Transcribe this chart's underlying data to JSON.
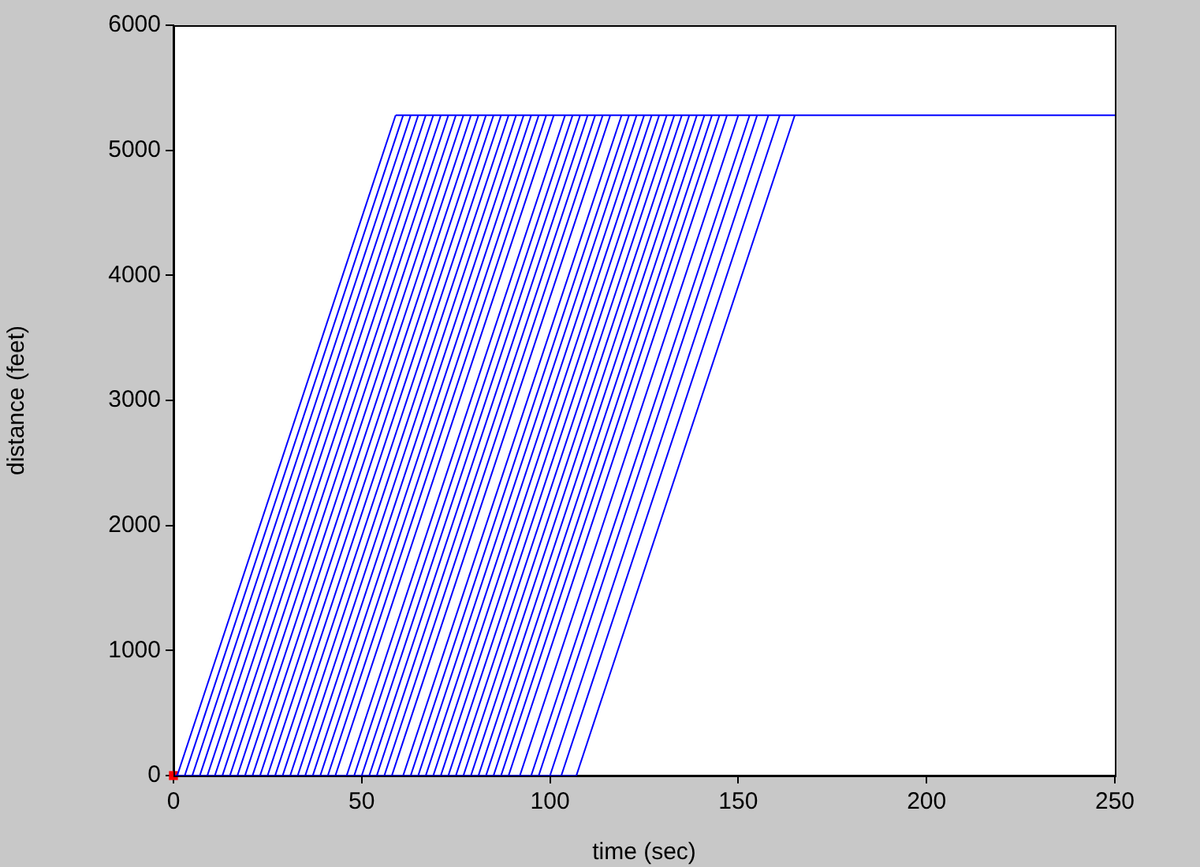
{
  "chart_data": {
    "type": "line",
    "xlabel": "time (sec)",
    "ylabel": "distance (feet)",
    "xlim": [
      0,
      250
    ],
    "xticks": [
      0,
      50,
      100,
      150,
      200,
      250
    ],
    "ylim": [
      0,
      6000
    ],
    "yticks": [
      0,
      1000,
      2000,
      3000,
      4000,
      5000,
      6000
    ],
    "grid": false,
    "legend": false,
    "marker": "none",
    "line_style": "solid",
    "series": [
      {
        "color": "#0000ff",
        "x": [
          0,
          107
        ],
        "values": [
          0,
          0
        ]
      },
      {
        "color": "#0000ff",
        "x": [
          59,
          250
        ],
        "values": [
          5280,
          5280
        ]
      },
      {
        "color": "#0000ff",
        "x": [
          1,
          59
        ],
        "values": [
          0,
          5280
        ]
      },
      {
        "color": "#0000ff",
        "x": [
          3,
          61
        ],
        "values": [
          0,
          5280
        ]
      },
      {
        "color": "#0000ff",
        "x": [
          5,
          63
        ],
        "values": [
          0,
          5280
        ]
      },
      {
        "color": "#0000ff",
        "x": [
          7,
          65
        ],
        "values": [
          0,
          5280
        ]
      },
      {
        "color": "#0000ff",
        "x": [
          9,
          67
        ],
        "values": [
          0,
          5280
        ]
      },
      {
        "color": "#0000ff",
        "x": [
          11,
          69
        ],
        "values": [
          0,
          5280
        ]
      },
      {
        "color": "#0000ff",
        "x": [
          13,
          71
        ],
        "values": [
          0,
          5280
        ]
      },
      {
        "color": "#0000ff",
        "x": [
          15,
          73
        ],
        "values": [
          0,
          5280
        ]
      },
      {
        "color": "#0000ff",
        "x": [
          17,
          75
        ],
        "values": [
          0,
          5280
        ]
      },
      {
        "color": "#0000ff",
        "x": [
          19,
          77
        ],
        "values": [
          0,
          5280
        ]
      },
      {
        "color": "#0000ff",
        "x": [
          21,
          79
        ],
        "values": [
          0,
          5280
        ]
      },
      {
        "color": "#0000ff",
        "x": [
          23,
          81
        ],
        "values": [
          0,
          5280
        ]
      },
      {
        "color": "#0000ff",
        "x": [
          25,
          83
        ],
        "values": [
          0,
          5280
        ]
      },
      {
        "color": "#0000ff",
        "x": [
          27,
          85
        ],
        "values": [
          0,
          5280
        ]
      },
      {
        "color": "#0000ff",
        "x": [
          29,
          87
        ],
        "values": [
          0,
          5280
        ]
      },
      {
        "color": "#0000ff",
        "x": [
          31,
          89
        ],
        "values": [
          0,
          5280
        ]
      },
      {
        "color": "#0000ff",
        "x": [
          33,
          91
        ],
        "values": [
          0,
          5280
        ]
      },
      {
        "color": "#0000ff",
        "x": [
          35,
          93
        ],
        "values": [
          0,
          5280
        ]
      },
      {
        "color": "#0000ff",
        "x": [
          37,
          95
        ],
        "values": [
          0,
          5280
        ]
      },
      {
        "color": "#0000ff",
        "x": [
          39,
          97
        ],
        "values": [
          0,
          5280
        ]
      },
      {
        "color": "#0000ff",
        "x": [
          41,
          99
        ],
        "values": [
          0,
          5280
        ]
      },
      {
        "color": "#0000ff",
        "x": [
          43,
          101
        ],
        "values": [
          0,
          5280
        ]
      },
      {
        "color": "#0000ff",
        "x": [
          46,
          104
        ],
        "values": [
          0,
          5280
        ]
      },
      {
        "color": "#0000ff",
        "x": [
          48,
          106
        ],
        "values": [
          0,
          5280
        ]
      },
      {
        "color": "#0000ff",
        "x": [
          50,
          108
        ],
        "values": [
          0,
          5280
        ]
      },
      {
        "color": "#0000ff",
        "x": [
          52,
          110
        ],
        "values": [
          0,
          5280
        ]
      },
      {
        "color": "#0000ff",
        "x": [
          54,
          112
        ],
        "values": [
          0,
          5280
        ]
      },
      {
        "color": "#0000ff",
        "x": [
          56,
          114
        ],
        "values": [
          0,
          5280
        ]
      },
      {
        "color": "#0000ff",
        "x": [
          58,
          116
        ],
        "values": [
          0,
          5280
        ]
      },
      {
        "color": "#0000ff",
        "x": [
          61,
          119
        ],
        "values": [
          0,
          5280
        ]
      },
      {
        "color": "#0000ff",
        "x": [
          63,
          121
        ],
        "values": [
          0,
          5280
        ]
      },
      {
        "color": "#0000ff",
        "x": [
          65,
          123
        ],
        "values": [
          0,
          5280
        ]
      },
      {
        "color": "#0000ff",
        "x": [
          67,
          125
        ],
        "values": [
          0,
          5280
        ]
      },
      {
        "color": "#0000ff",
        "x": [
          69,
          127
        ],
        "values": [
          0,
          5280
        ]
      },
      {
        "color": "#0000ff",
        "x": [
          71,
          129
        ],
        "values": [
          0,
          5280
        ]
      },
      {
        "color": "#0000ff",
        "x": [
          73,
          131
        ],
        "values": [
          0,
          5280
        ]
      },
      {
        "color": "#0000ff",
        "x": [
          75,
          133
        ],
        "values": [
          0,
          5280
        ]
      },
      {
        "color": "#0000ff",
        "x": [
          77,
          135
        ],
        "values": [
          0,
          5280
        ]
      },
      {
        "color": "#0000ff",
        "x": [
          79,
          137
        ],
        "values": [
          0,
          5280
        ]
      },
      {
        "color": "#0000ff",
        "x": [
          81,
          139
        ],
        "values": [
          0,
          5280
        ]
      },
      {
        "color": "#0000ff",
        "x": [
          83,
          141
        ],
        "values": [
          0,
          5280
        ]
      },
      {
        "color": "#0000ff",
        "x": [
          85,
          143
        ],
        "values": [
          0,
          5280
        ]
      },
      {
        "color": "#0000ff",
        "x": [
          87,
          145
        ],
        "values": [
          0,
          5280
        ]
      },
      {
        "color": "#0000ff",
        "x": [
          89,
          147
        ],
        "values": [
          0,
          5280
        ]
      },
      {
        "color": "#0000ff",
        "x": [
          92,
          150
        ],
        "values": [
          0,
          5280
        ]
      },
      {
        "color": "#0000ff",
        "x": [
          95,
          153
        ],
        "values": [
          0,
          5280
        ]
      },
      {
        "color": "#0000ff",
        "x": [
          97,
          155
        ],
        "values": [
          0,
          5280
        ]
      },
      {
        "color": "#0000ff",
        "x": [
          100,
          158
        ],
        "values": [
          0,
          5280
        ]
      },
      {
        "color": "#0000ff",
        "x": [
          103,
          161
        ],
        "values": [
          0,
          5280
        ]
      },
      {
        "color": "#0000ff",
        "x": [
          107,
          165
        ],
        "values": [
          0,
          5280
        ]
      },
      {
        "type": "scatter",
        "marker": "square",
        "color": "#ff0000",
        "x": [
          0
        ],
        "values": [
          0
        ]
      }
    ]
  }
}
